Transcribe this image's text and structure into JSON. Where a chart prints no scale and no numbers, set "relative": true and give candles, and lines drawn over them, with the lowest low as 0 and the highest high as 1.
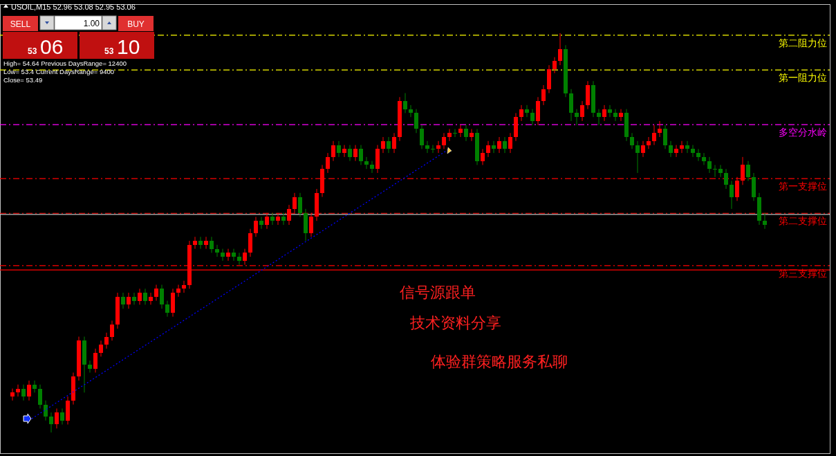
{
  "chart_data": {
    "type": "candlestick",
    "relative": true,
    "title": "USOIL,M15  52.96 53.08 52.95 53.06",
    "categories": [
      null,
      null,
      null,
      null,
      null,
      null,
      null,
      null,
      null,
      null,
      null,
      null,
      null,
      null,
      null,
      null,
      null,
      null,
      null,
      null,
      null,
      null,
      null,
      null,
      null,
      null,
      null,
      null,
      null,
      null,
      null,
      null,
      null,
      null,
      null,
      null,
      null,
      null,
      null,
      null,
      null,
      null,
      null,
      null,
      null,
      null,
      null,
      null,
      null,
      null,
      null,
      null,
      null,
      null,
      null,
      null,
      null,
      null,
      null,
      null,
      null,
      null,
      null,
      null,
      null,
      null,
      null,
      null,
      null,
      null,
      null,
      null,
      null,
      null,
      null,
      null,
      null,
      null,
      null,
      null,
      null,
      null,
      null,
      null,
      null,
      null,
      null,
      null,
      null,
      null,
      null,
      null,
      null,
      null,
      null,
      null,
      null,
      null,
      null,
      null,
      null,
      null,
      null,
      null,
      null,
      null,
      null,
      null,
      null,
      null,
      null,
      null,
      null,
      null,
      null,
      null,
      null,
      null,
      null,
      null,
      null,
      null,
      null,
      null,
      null,
      null,
      null,
      null,
      null,
      null,
      null,
      null,
      null,
      null,
      null,
      null,
      null
    ],
    "ohlc": [
      [
        0.09,
        0.11,
        0.08,
        0.1
      ],
      [
        0.1,
        0.12,
        0.09,
        0.11
      ],
      [
        0.11,
        0.12,
        0.08,
        0.09
      ],
      [
        0.09,
        0.13,
        0.08,
        0.12
      ],
      [
        0.12,
        0.13,
        0.1,
        0.11
      ],
      [
        0.11,
        0.12,
        0.06,
        0.07
      ],
      [
        0.07,
        0.08,
        0.03,
        0.04
      ],
      [
        0.04,
        0.05,
        0.0,
        0.02
      ],
      [
        0.02,
        0.06,
        0.01,
        0.05
      ],
      [
        0.05,
        0.06,
        0.02,
        0.03
      ],
      [
        0.03,
        0.09,
        0.02,
        0.08
      ],
      [
        0.08,
        0.15,
        0.07,
        0.14
      ],
      [
        0.14,
        0.24,
        0.13,
        0.23
      ],
      [
        0.23,
        0.24,
        0.1,
        0.17
      ],
      [
        0.17,
        0.18,
        0.15,
        0.16
      ],
      [
        0.16,
        0.21,
        0.15,
        0.2
      ],
      [
        0.2,
        0.23,
        0.19,
        0.22
      ],
      [
        0.22,
        0.25,
        0.21,
        0.24
      ],
      [
        0.24,
        0.28,
        0.23,
        0.27
      ],
      [
        0.27,
        0.35,
        0.26,
        0.34
      ],
      [
        0.34,
        0.35,
        0.31,
        0.32
      ],
      [
        0.32,
        0.35,
        0.31,
        0.34
      ],
      [
        0.34,
        0.35,
        0.32,
        0.33
      ],
      [
        0.33,
        0.36,
        0.32,
        0.35
      ],
      [
        0.35,
        0.36,
        0.32,
        0.33
      ],
      [
        0.33,
        0.35,
        0.32,
        0.34
      ],
      [
        0.34,
        0.37,
        0.33,
        0.36
      ],
      [
        0.36,
        0.37,
        0.31,
        0.32
      ],
      [
        0.32,
        0.33,
        0.29,
        0.3
      ],
      [
        0.3,
        0.36,
        0.29,
        0.35
      ],
      [
        0.35,
        0.37,
        0.34,
        0.36
      ],
      [
        0.36,
        0.38,
        0.35,
        0.37
      ],
      [
        0.37,
        0.48,
        0.36,
        0.47
      ],
      [
        0.47,
        0.49,
        0.46,
        0.48
      ],
      [
        0.48,
        0.49,
        0.46,
        0.47
      ],
      [
        0.47,
        0.49,
        0.46,
        0.48
      ],
      [
        0.48,
        0.49,
        0.45,
        0.46
      ],
      [
        0.46,
        0.47,
        0.44,
        0.45
      ],
      [
        0.45,
        0.46,
        0.43,
        0.44
      ],
      [
        0.44,
        0.46,
        0.43,
        0.45
      ],
      [
        0.45,
        0.46,
        0.43,
        0.44
      ],
      [
        0.44,
        0.45,
        0.42,
        0.43
      ],
      [
        0.43,
        0.46,
        0.42,
        0.45
      ],
      [
        0.45,
        0.51,
        0.44,
        0.5
      ],
      [
        0.5,
        0.54,
        0.49,
        0.53
      ],
      [
        0.53,
        0.54,
        0.51,
        0.52
      ],
      [
        0.52,
        0.55,
        0.51,
        0.54
      ],
      [
        0.54,
        0.55,
        0.52,
        0.53
      ],
      [
        0.53,
        0.55,
        0.52,
        0.54
      ],
      [
        0.54,
        0.55,
        0.52,
        0.53
      ],
      [
        0.53,
        0.57,
        0.52,
        0.56
      ],
      [
        0.56,
        0.6,
        0.55,
        0.59
      ],
      [
        0.59,
        0.6,
        0.54,
        0.55
      ],
      [
        0.55,
        0.56,
        0.48,
        0.5
      ],
      [
        0.5,
        0.55,
        0.49,
        0.54
      ],
      [
        0.54,
        0.61,
        0.53,
        0.6
      ],
      [
        0.6,
        0.67,
        0.59,
        0.66
      ],
      [
        0.66,
        0.7,
        0.65,
        0.69
      ],
      [
        0.69,
        0.73,
        0.68,
        0.72
      ],
      [
        0.72,
        0.73,
        0.69,
        0.7
      ],
      [
        0.7,
        0.72,
        0.69,
        0.71
      ],
      [
        0.71,
        0.72,
        0.68,
        0.69
      ],
      [
        0.69,
        0.72,
        0.68,
        0.71
      ],
      [
        0.71,
        0.72,
        0.67,
        0.68
      ],
      [
        0.68,
        0.69,
        0.66,
        0.67
      ],
      [
        0.67,
        0.68,
        0.65,
        0.66
      ],
      [
        0.66,
        0.72,
        0.65,
        0.71
      ],
      [
        0.71,
        0.74,
        0.7,
        0.73
      ],
      [
        0.73,
        0.74,
        0.7,
        0.71
      ],
      [
        0.71,
        0.75,
        0.7,
        0.74
      ],
      [
        0.74,
        0.84,
        0.73,
        0.83
      ],
      [
        0.83,
        0.85,
        0.8,
        0.81
      ],
      [
        0.81,
        0.82,
        0.79,
        0.8
      ],
      [
        0.8,
        0.81,
        0.75,
        0.76
      ],
      [
        0.76,
        0.77,
        0.71,
        0.72
      ],
      [
        0.72,
        0.73,
        0.7,
        0.71
      ],
      [
        0.71,
        0.72,
        0.7,
        0.71
      ],
      [
        0.71,
        0.73,
        0.7,
        0.72
      ],
      [
        0.72,
        0.75,
        0.71,
        0.74
      ],
      [
        0.74,
        0.76,
        0.73,
        0.75
      ],
      [
        0.75,
        0.76,
        0.74,
        0.75
      ],
      [
        0.75,
        0.77,
        0.74,
        0.76
      ],
      [
        0.76,
        0.77,
        0.73,
        0.74
      ],
      [
        0.74,
        0.76,
        0.73,
        0.75
      ],
      [
        0.75,
        0.76,
        0.67,
        0.68
      ],
      [
        0.68,
        0.71,
        0.67,
        0.7
      ],
      [
        0.7,
        0.73,
        0.69,
        0.72
      ],
      [
        0.72,
        0.73,
        0.7,
        0.71
      ],
      [
        0.71,
        0.74,
        0.7,
        0.73
      ],
      [
        0.73,
        0.74,
        0.7,
        0.71
      ],
      [
        0.71,
        0.75,
        0.7,
        0.74
      ],
      [
        0.74,
        0.8,
        0.73,
        0.79
      ],
      [
        0.79,
        0.82,
        0.78,
        0.81
      ],
      [
        0.81,
        0.82,
        0.79,
        0.8
      ],
      [
        0.8,
        0.81,
        0.77,
        0.78
      ],
      [
        0.78,
        0.84,
        0.77,
        0.83
      ],
      [
        0.83,
        0.87,
        0.82,
        0.86
      ],
      [
        0.86,
        0.92,
        0.85,
        0.91
      ],
      [
        0.91,
        0.94,
        0.9,
        0.93
      ],
      [
        0.93,
        1.0,
        0.92,
        0.96
      ],
      [
        0.96,
        0.97,
        0.84,
        0.85
      ],
      [
        0.85,
        0.86,
        0.78,
        0.8
      ],
      [
        0.8,
        0.81,
        0.77,
        0.79
      ],
      [
        0.79,
        0.83,
        0.78,
        0.82
      ],
      [
        0.82,
        0.88,
        0.81,
        0.87
      ],
      [
        0.87,
        0.88,
        0.79,
        0.8
      ],
      [
        0.8,
        0.81,
        0.77,
        0.79
      ],
      [
        0.79,
        0.82,
        0.78,
        0.81
      ],
      [
        0.81,
        0.82,
        0.79,
        0.8
      ],
      [
        0.8,
        0.81,
        0.78,
        0.79
      ],
      [
        0.79,
        0.81,
        0.78,
        0.8
      ],
      [
        0.8,
        0.81,
        0.73,
        0.74
      ],
      [
        0.74,
        0.75,
        0.71,
        0.72
      ],
      [
        0.72,
        0.73,
        0.65,
        0.7
      ],
      [
        0.7,
        0.73,
        0.69,
        0.72
      ],
      [
        0.72,
        0.74,
        0.71,
        0.73
      ],
      [
        0.73,
        0.77,
        0.72,
        0.75
      ],
      [
        0.75,
        0.78,
        0.74,
        0.76
      ],
      [
        0.76,
        0.77,
        0.71,
        0.72
      ],
      [
        0.72,
        0.73,
        0.69,
        0.7
      ],
      [
        0.7,
        0.72,
        0.69,
        0.71
      ],
      [
        0.71,
        0.73,
        0.7,
        0.72
      ],
      [
        0.72,
        0.73,
        0.7,
        0.71
      ],
      [
        0.71,
        0.72,
        0.69,
        0.7
      ],
      [
        0.7,
        0.71,
        0.68,
        0.69
      ],
      [
        0.69,
        0.7,
        0.67,
        0.68
      ],
      [
        0.68,
        0.69,
        0.65,
        0.66
      ],
      [
        0.66,
        0.67,
        0.64,
        0.66
      ],
      [
        0.66,
        0.67,
        0.64,
        0.65
      ],
      [
        0.65,
        0.66,
        0.61,
        0.62
      ],
      [
        0.62,
        0.63,
        0.56,
        0.59
      ],
      [
        0.59,
        0.64,
        0.58,
        0.63
      ],
      [
        0.63,
        0.69,
        0.62,
        0.67
      ],
      [
        0.67,
        0.68,
        0.63,
        0.64
      ],
      [
        0.64,
        0.65,
        0.58,
        0.59
      ],
      [
        0.59,
        0.6,
        0.52,
        0.53
      ],
      [
        0.53,
        0.55,
        0.51,
        0.52
      ]
    ],
    "colors": [
      "#ff0000",
      "#ff0000",
      "#008000",
      "#ff0000",
      "#008000",
      "#008000",
      "#008000",
      "#008000",
      "#ff0000",
      "#008000",
      "#ff0000",
      "#ff0000",
      "#ff0000",
      "#008000",
      "#008000",
      "#ff0000",
      "#ff0000",
      "#ff0000",
      "#ff0000",
      "#ff0000",
      "#008000",
      "#ff0000",
      "#008000",
      "#ff0000",
      "#008000",
      "#ff0000",
      "#ff0000",
      "#008000",
      "#008000",
      "#ff0000",
      "#ff0000",
      "#ff0000",
      "#ff0000",
      "#ff0000",
      "#008000",
      "#ff0000",
      "#008000",
      "#008000",
      "#008000",
      "#ff0000",
      "#008000",
      "#008000",
      "#ff0000",
      "#ff0000",
      "#ff0000",
      "#008000",
      "#ff0000",
      "#008000",
      "#ff0000",
      "#008000",
      "#ff0000",
      "#ff0000",
      "#008000",
      "#008000",
      "#ff0000",
      "#ff0000",
      "#ff0000",
      "#ff0000",
      "#ff0000",
      "#008000",
      "#ff0000",
      "#008000",
      "#ff0000",
      "#008000",
      "#008000",
      "#008000",
      "#ff0000",
      "#ff0000",
      "#008000",
      "#ff0000",
      "#ff0000",
      "#008000",
      "#008000",
      "#008000",
      "#008000",
      "#008000",
      "#008000",
      "#ff0000",
      "#ff0000",
      "#ff0000",
      "#008000",
      "#ff0000",
      "#008000",
      "#ff0000",
      "#008000",
      "#ff0000",
      "#ff0000",
      "#008000",
      "#ff0000",
      "#008000",
      "#ff0000",
      "#ff0000",
      "#ff0000",
      "#008000",
      "#008000",
      "#ff0000",
      "#ff0000",
      "#ff0000",
      "#ff0000",
      "#ff0000",
      "#008000",
      "#008000",
      "#008000",
      "#ff0000",
      "#ff0000",
      "#008000",
      "#008000",
      "#ff0000",
      "#008000",
      "#008000",
      "#ff0000",
      "#008000",
      "#008000",
      "#008000",
      "#ff0000",
      "#ff0000",
      "#ff0000",
      "#ff0000",
      "#008000",
      "#008000",
      "#ff0000",
      "#ff0000",
      "#008000",
      "#008000",
      "#008000",
      "#008000",
      "#008000",
      "#008000",
      "#008000",
      "#008000",
      "#008000",
      "#ff0000",
      "#ff0000",
      "#008000",
      "#008000",
      "#008000",
      "#008000"
    ],
    "ref_lines": [
      {
        "axis": "y",
        "value": 0.995,
        "label": "第二阻力位",
        "color": "#ffff00",
        "line_style": "dashed"
      },
      {
        "axis": "y",
        "value": 0.908,
        "label": "第一阻力位",
        "color": "#ffff00",
        "line_style": "dashed"
      },
      {
        "axis": "y",
        "value": 0.771,
        "label": "多空分水岭",
        "color": "#ff00ff",
        "line_style": "dashed"
      },
      {
        "axis": "y",
        "value": 0.636,
        "label": "第一支撑位",
        "color": "#ff0000",
        "line_style": "dashed"
      },
      {
        "axis": "y",
        "value": 0.549,
        "label": "第二支撑位",
        "color": "#ff0000",
        "line_style": "dashed"
      },
      {
        "axis": "y",
        "value": 0.546,
        "label": null,
        "color": "#c0c0c0",
        "line_style": "solid"
      },
      {
        "axis": "y",
        "value": 0.418,
        "label": "第三支撑位",
        "color": "#ff0000",
        "line_style": "dashed"
      },
      {
        "axis": "y",
        "value": 0.407,
        "label": null,
        "color": "#ff0000",
        "line_style": "solid"
      }
    ],
    "annotations": [
      "SELL",
      "1.00",
      "BUY",
      "53",
      "06",
      "53",
      "10",
      "High= 54.64 Previous DaysRange= 12400",
      "Low= 53.4 Current DaysRange= 9400",
      "Close= 53.49",
      "信号源跟单",
      "技术资料分享",
      "体验群策略服务私聊"
    ]
  }
}
